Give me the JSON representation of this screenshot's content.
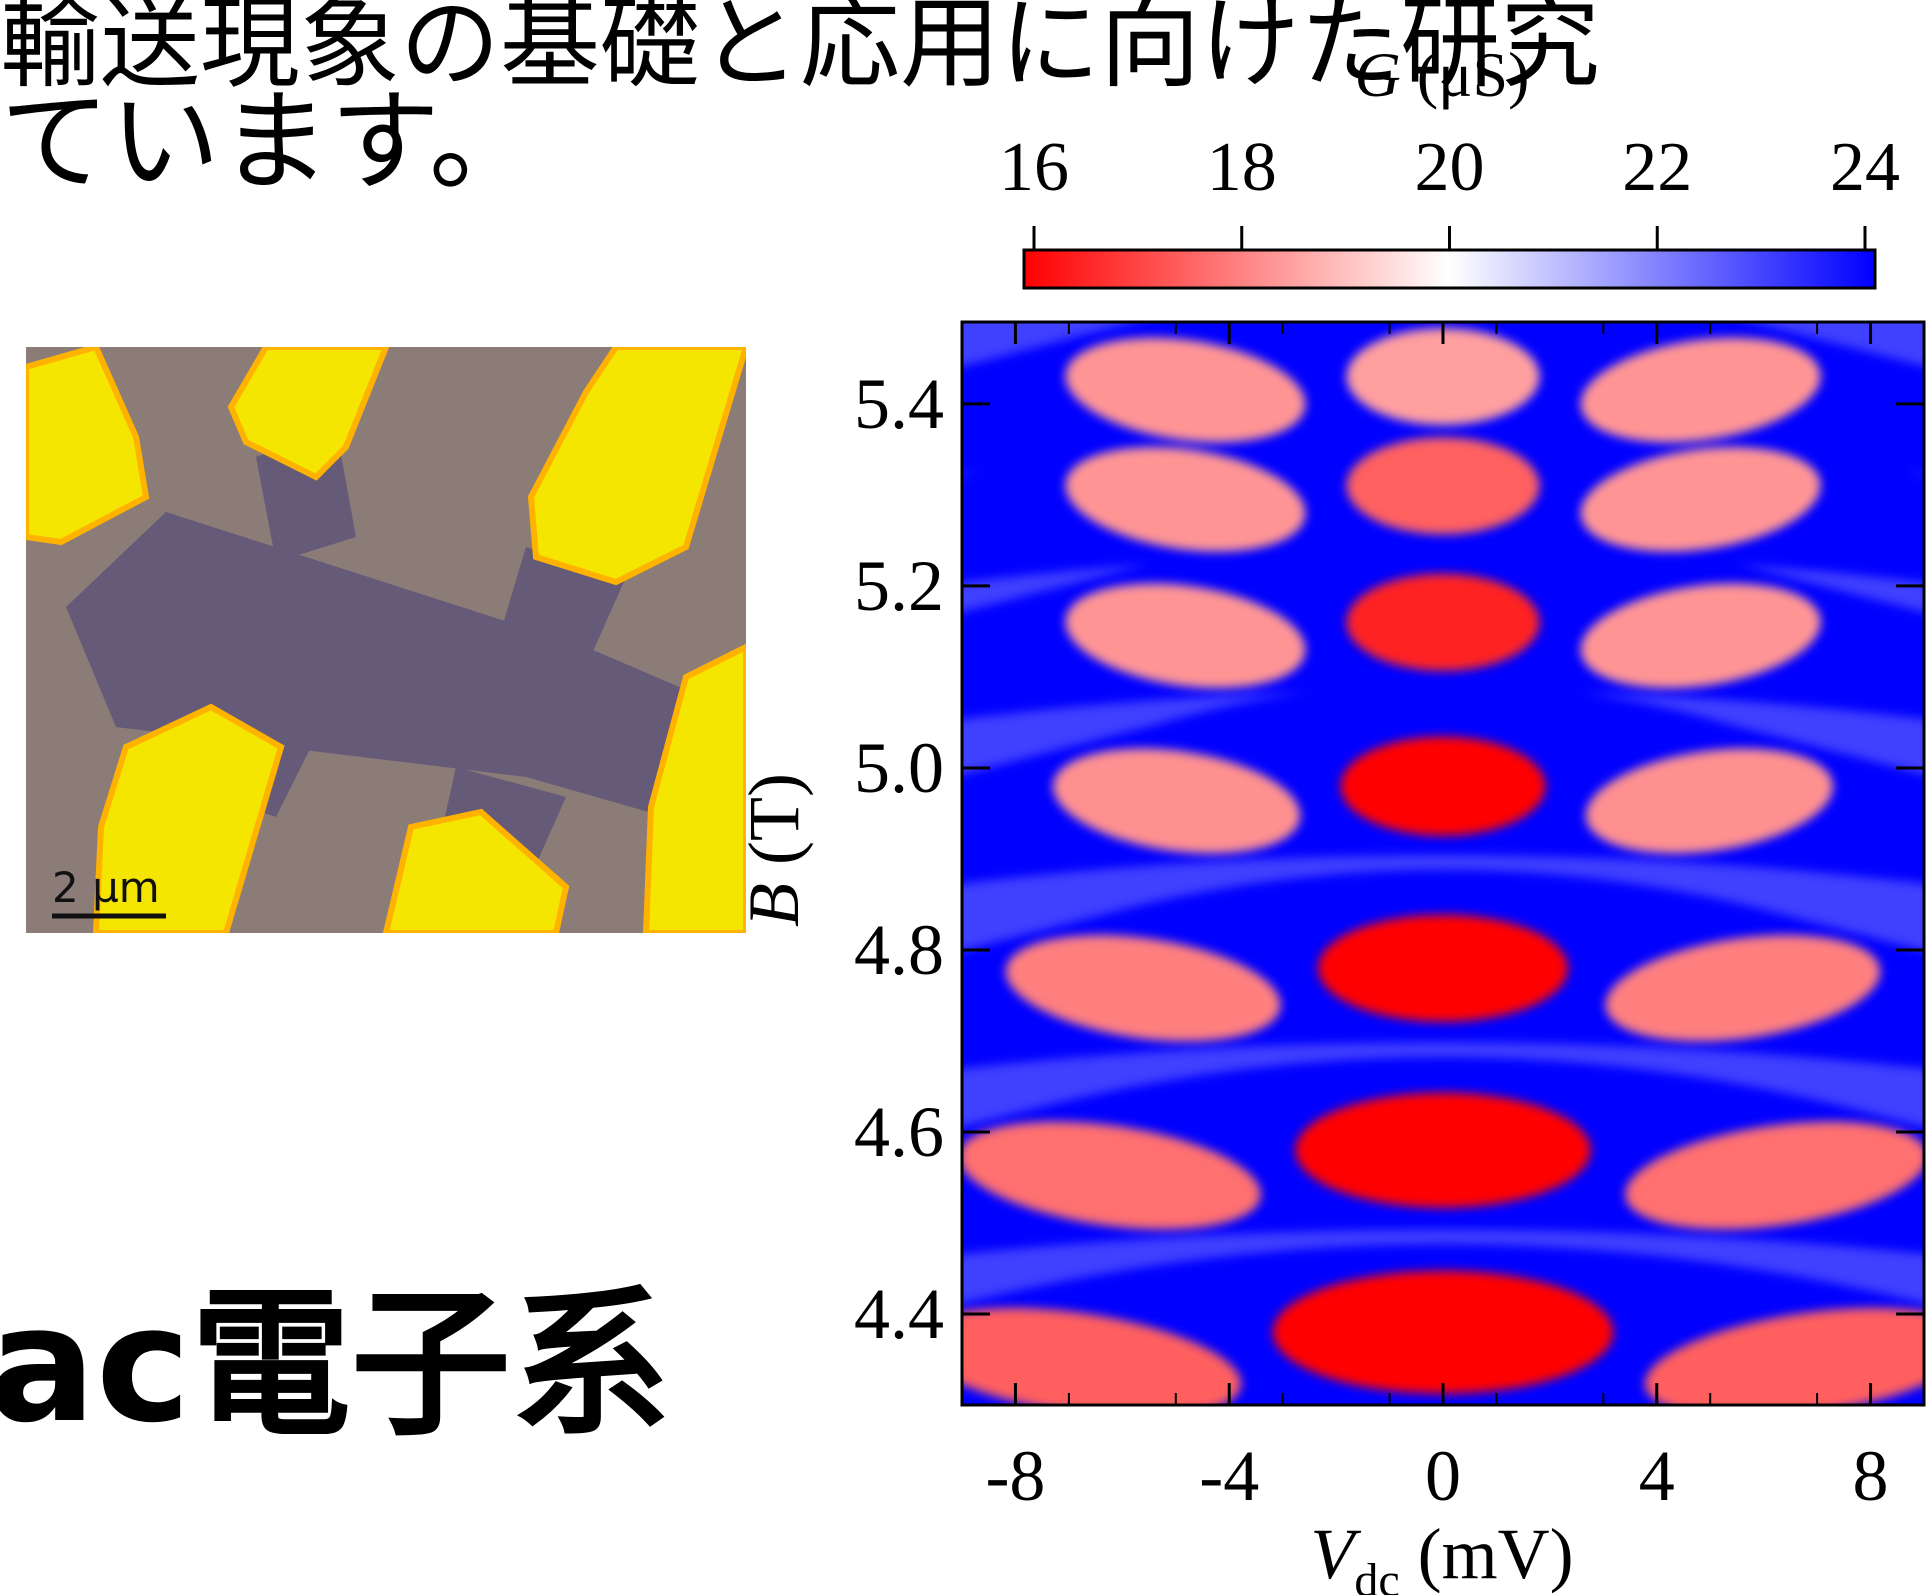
{
  "text": {
    "line1": "輸送現象の基礎と応用に向けた研究",
    "line2": "ています。",
    "heading": "ac電子系"
  },
  "micrograph": {
    "scale_bar_label": "2 µm",
    "colors": {
      "substrate": "#8b7c78",
      "channel": "#655a78",
      "electrode": "#f4e600",
      "electrode_edge": "#ffb300"
    }
  },
  "chart_data": {
    "type": "heatmap",
    "colorbar": {
      "label_symbol": "G",
      "label_unit": " (μS)",
      "ticks": [
        "16",
        "18",
        "20",
        "22",
        "24"
      ],
      "range": [
        16,
        24
      ],
      "colors": {
        "low": "#ff0000",
        "mid": "#ffffff",
        "high": "#0000ff"
      }
    },
    "x_axis": {
      "label_symbol": "V",
      "label_subscript": "dc",
      "label_unit": " (mV)",
      "ticks": [
        "-8",
        "-4",
        "0",
        "4",
        "8"
      ],
      "tick_values": [
        -8,
        -4,
        0,
        4,
        8
      ],
      "range": [
        -9,
        9
      ]
    },
    "y_axis": {
      "label_symbol": "B",
      "label_unit": " (T)",
      "ticks": [
        "4.4",
        "4.6",
        "4.8",
        "5.0",
        "5.2",
        "5.4"
      ],
      "tick_values": [
        4.4,
        4.6,
        4.8,
        5.0,
        5.2,
        5.4
      ],
      "range": [
        4.3,
        5.49
      ]
    },
    "diamond_centers": [
      {
        "b": 4.38,
        "g": 16
      },
      {
        "b": 4.58,
        "g": 16
      },
      {
        "b": 4.78,
        "g": 16
      },
      {
        "b": 4.98,
        "g": 16
      },
      {
        "b": 5.16,
        "g": 16.5
      },
      {
        "b": 5.31,
        "g": 17.5
      },
      {
        "b": 5.43,
        "g": 18.5
      }
    ]
  }
}
